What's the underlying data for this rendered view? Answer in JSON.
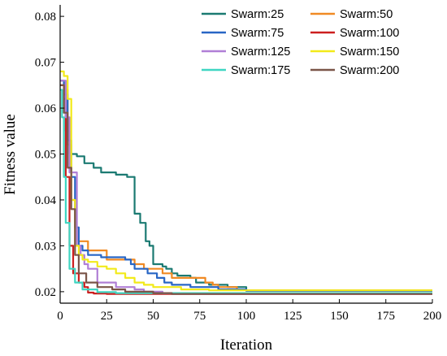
{
  "chart_data": {
    "type": "line",
    "title": "",
    "xlabel": "Iteration",
    "ylabel": "Fitness value",
    "xlim": [
      0,
      200
    ],
    "ylim": [
      0.0175,
      0.0825
    ],
    "x_ticks": [
      0,
      25,
      50,
      75,
      100,
      125,
      150,
      175,
      200
    ],
    "y_ticks": [
      0.02,
      0.03,
      0.04,
      0.05,
      0.06,
      0.07,
      0.08
    ],
    "x_tick_labels": [
      "0",
      "25",
      "50",
      "75",
      "100",
      "125",
      "150",
      "175",
      "200"
    ],
    "y_tick_labels": [
      "0.02",
      "0.03",
      "0.04",
      "0.05",
      "0.06",
      "0.07",
      "0.08"
    ],
    "grid": false,
    "legend_position": "top-right",
    "series": [
      {
        "name": "Swarm:25",
        "color": "#1b7a72",
        "points": [
          [
            0,
            0.066
          ],
          [
            2,
            0.062
          ],
          [
            3,
            0.055
          ],
          [
            5,
            0.05
          ],
          [
            8,
            0.05
          ],
          [
            9,
            0.0495
          ],
          [
            12,
            0.0495
          ],
          [
            13,
            0.048
          ],
          [
            18,
            0.047
          ],
          [
            22,
            0.046
          ],
          [
            26,
            0.046
          ],
          [
            30,
            0.0455
          ],
          [
            35,
            0.0455
          ],
          [
            36,
            0.045
          ],
          [
            39,
            0.045
          ],
          [
            40,
            0.037
          ],
          [
            43,
            0.035
          ],
          [
            46,
            0.031
          ],
          [
            48,
            0.03
          ],
          [
            50,
            0.026
          ],
          [
            55,
            0.0255
          ],
          [
            57,
            0.025
          ],
          [
            60,
            0.024
          ],
          [
            63,
            0.0235
          ],
          [
            70,
            0.023
          ],
          [
            73,
            0.022
          ],
          [
            78,
            0.022
          ],
          [
            80,
            0.0215
          ],
          [
            90,
            0.021
          ],
          [
            100,
            0.0202
          ],
          [
            200,
            0.0202
          ]
        ]
      },
      {
        "name": "Swarm:50",
        "color": "#f08a24",
        "points": [
          [
            0,
            0.066
          ],
          [
            2,
            0.064
          ],
          [
            4,
            0.052
          ],
          [
            6,
            0.04
          ],
          [
            8,
            0.034
          ],
          [
            10,
            0.031
          ],
          [
            15,
            0.029
          ],
          [
            25,
            0.027
          ],
          [
            35,
            0.027
          ],
          [
            40,
            0.026
          ],
          [
            45,
            0.025
          ],
          [
            55,
            0.024
          ],
          [
            60,
            0.023
          ],
          [
            70,
            0.023
          ],
          [
            78,
            0.022
          ],
          [
            82,
            0.0215
          ],
          [
            85,
            0.021
          ],
          [
            95,
            0.0205
          ],
          [
            100,
            0.0203
          ],
          [
            200,
            0.0203
          ]
        ]
      },
      {
        "name": "Swarm:75",
        "color": "#2866c5",
        "points": [
          [
            0,
            0.066
          ],
          [
            2,
            0.063
          ],
          [
            4,
            0.053
          ],
          [
            6,
            0.045
          ],
          [
            8,
            0.034
          ],
          [
            10,
            0.03
          ],
          [
            12,
            0.029
          ],
          [
            15,
            0.028
          ],
          [
            20,
            0.028
          ],
          [
            22,
            0.0275
          ],
          [
            30,
            0.0275
          ],
          [
            35,
            0.027
          ],
          [
            38,
            0.026
          ],
          [
            40,
            0.025
          ],
          [
            43,
            0.025
          ],
          [
            47,
            0.024
          ],
          [
            52,
            0.023
          ],
          [
            56,
            0.022
          ],
          [
            60,
            0.0215
          ],
          [
            70,
            0.021
          ],
          [
            82,
            0.021
          ],
          [
            85,
            0.0205
          ],
          [
            100,
            0.0202
          ],
          [
            200,
            0.0202
          ]
        ]
      },
      {
        "name": "Swarm:100",
        "color": "#cc1f1f",
        "points": [
          [
            0,
            0.065
          ],
          [
            2,
            0.06
          ],
          [
            3,
            0.045
          ],
          [
            5,
            0.03
          ],
          [
            7,
            0.024
          ],
          [
            10,
            0.022
          ],
          [
            13,
            0.021
          ],
          [
            15,
            0.0198
          ],
          [
            18,
            0.0196
          ],
          [
            25,
            0.0195
          ],
          [
            200,
            0.0195
          ]
        ]
      },
      {
        "name": "Swarm:125",
        "color": "#b07fd6",
        "points": [
          [
            0,
            0.066
          ],
          [
            3,
            0.058
          ],
          [
            5,
            0.046
          ],
          [
            8,
            0.046
          ],
          [
            9,
            0.03
          ],
          [
            11,
            0.028
          ],
          [
            13,
            0.026
          ],
          [
            15,
            0.025
          ],
          [
            20,
            0.022
          ],
          [
            30,
            0.021
          ],
          [
            40,
            0.0205
          ],
          [
            45,
            0.02
          ],
          [
            55,
            0.0197
          ],
          [
            65,
            0.0196
          ],
          [
            200,
            0.0196
          ]
        ]
      },
      {
        "name": "Swarm:150",
        "color": "#f2ea1a",
        "points": [
          [
            0,
            0.068
          ],
          [
            2,
            0.067
          ],
          [
            4,
            0.062
          ],
          [
            6,
            0.04
          ],
          [
            8,
            0.03
          ],
          [
            10,
            0.028
          ],
          [
            12,
            0.027
          ],
          [
            15,
            0.0265
          ],
          [
            20,
            0.0255
          ],
          [
            25,
            0.025
          ],
          [
            30,
            0.024
          ],
          [
            35,
            0.023
          ],
          [
            40,
            0.022
          ],
          [
            45,
            0.0215
          ],
          [
            50,
            0.021
          ],
          [
            65,
            0.0205
          ],
          [
            80,
            0.0203
          ],
          [
            200,
            0.0203
          ]
        ]
      },
      {
        "name": "Swarm:175",
        "color": "#3fd6c2",
        "points": [
          [
            0,
            0.064
          ],
          [
            1,
            0.058
          ],
          [
            2,
            0.045
          ],
          [
            3,
            0.035
          ],
          [
            5,
            0.025
          ],
          [
            8,
            0.022
          ],
          [
            12,
            0.0205
          ],
          [
            20,
            0.0199
          ],
          [
            30,
            0.0197
          ],
          [
            200,
            0.0197
          ]
        ]
      },
      {
        "name": "Swarm:200",
        "color": "#7a5548",
        "points": [
          [
            0,
            0.065
          ],
          [
            2,
            0.059
          ],
          [
            4,
            0.047
          ],
          [
            6,
            0.038
          ],
          [
            8,
            0.028
          ],
          [
            10,
            0.024
          ],
          [
            14,
            0.022
          ],
          [
            20,
            0.021
          ],
          [
            28,
            0.0205
          ],
          [
            35,
            0.02
          ],
          [
            50,
            0.0197
          ],
          [
            60,
            0.0195
          ],
          [
            200,
            0.0195
          ]
        ]
      }
    ]
  }
}
